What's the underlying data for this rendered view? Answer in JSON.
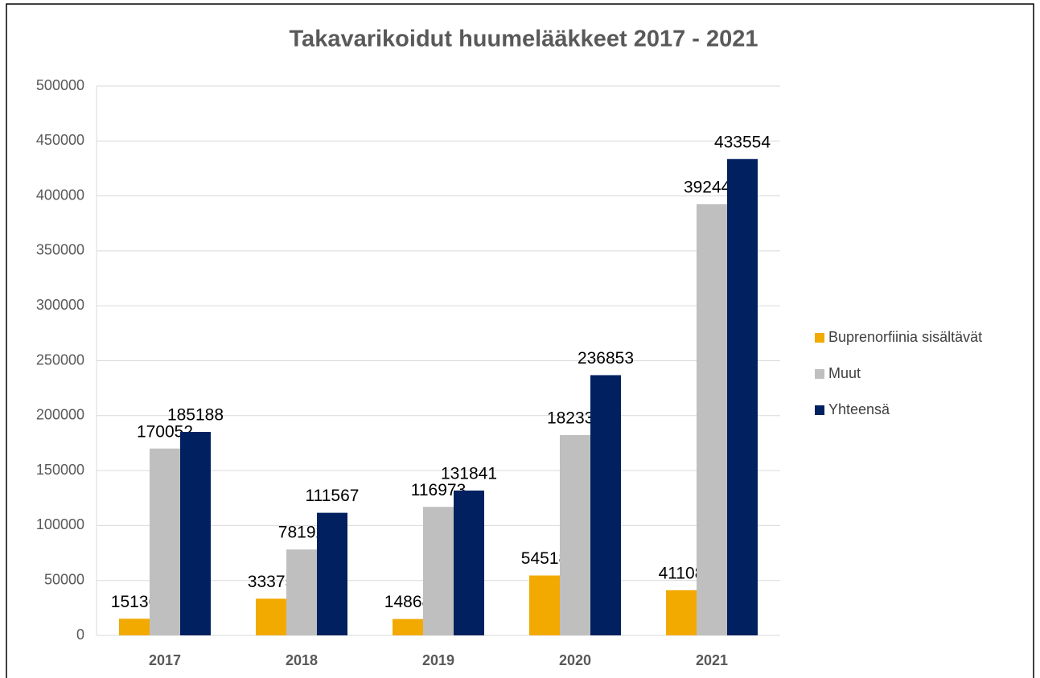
{
  "chart_data": {
    "type": "bar",
    "title": "Takavarikoidut huumelääkkeet 2017 - 2021",
    "categories": [
      "2017",
      "2018",
      "2019",
      "2020",
      "2021"
    ],
    "series": [
      {
        "name": "Buprenorfiinia sisältävät",
        "color": "#f2a900",
        "values": [
          15136,
          33375,
          14868,
          54518,
          41108
        ]
      },
      {
        "name": "Muut",
        "color": "#bfbfbf",
        "values": [
          170052,
          78192,
          116973,
          182335,
          392446
        ]
      },
      {
        "name": "Yhteensä",
        "color": "#002060",
        "values": [
          185188,
          111567,
          131841,
          236853,
          433554
        ]
      }
    ],
    "ylim": [
      0,
      500000
    ],
    "yticks": [
      0,
      50000,
      100000,
      150000,
      200000,
      250000,
      300000,
      350000,
      400000,
      450000,
      500000
    ],
    "grid": true,
    "legend": "right"
  }
}
